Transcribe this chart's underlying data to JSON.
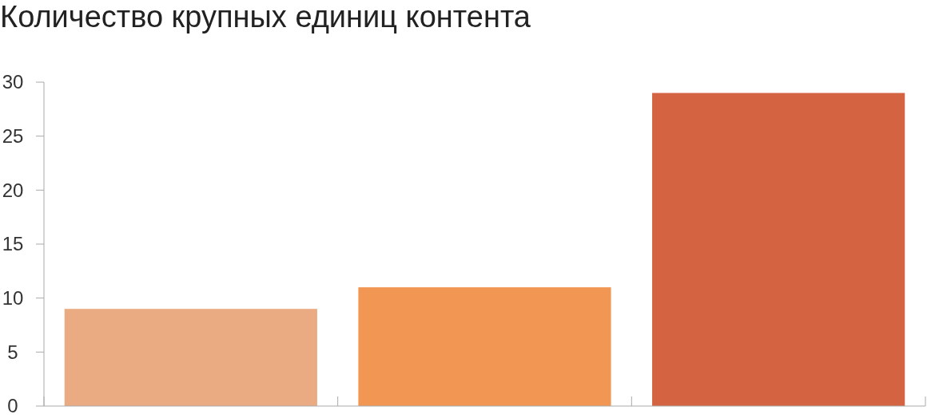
{
  "chart_data": {
    "type": "bar",
    "title": "Количество крупных единиц контента",
    "categories": [
      null,
      null,
      null
    ],
    "values": [
      9,
      11,
      29
    ],
    "colors": [
      "#ebab82",
      "#f29753",
      "#d46441"
    ],
    "ylim": [
      0,
      30
    ],
    "yticks": [
      0,
      5,
      10,
      15,
      20,
      25,
      30
    ],
    "grid": false
  }
}
